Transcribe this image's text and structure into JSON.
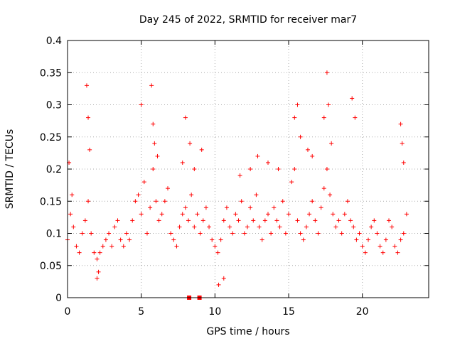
{
  "chart_data": {
    "type": "scatter",
    "title": "Day 245 of 2022, SRMTID for receiver mar7",
    "xlabel": "GPS time / hours",
    "ylabel": "SRMTID / TECUs",
    "xlim": [
      0,
      24.5
    ],
    "ylim": [
      0,
      0.4
    ],
    "x_ticks": [
      0,
      5,
      10,
      15,
      20
    ],
    "x_tick_labels": [
      "0",
      "5",
      "10",
      "15",
      "20"
    ],
    "y_ticks": [
      0,
      0.05,
      0.1,
      0.15,
      0.2,
      0.25,
      0.3,
      0.35,
      0.4
    ],
    "y_tick_labels": [
      "0",
      "0.05",
      "0.1",
      "0.15",
      "0.2",
      "0.25",
      "0.3",
      "0.35",
      "0.4"
    ],
    "grid": true,
    "marker": "+",
    "color": "#ff0000",
    "series": [
      {
        "name": "SRMTID",
        "x": [
          0.0,
          0.2,
          0.4,
          0.6,
          0.8,
          1.0,
          1.2,
          1.4,
          1.6,
          1.8,
          2.0,
          2.2,
          2.4,
          2.6,
          2.8,
          3.0,
          3.2,
          3.4,
          3.6,
          3.8,
          4.0,
          4.2,
          4.4,
          4.6,
          4.8,
          5.0,
          5.2,
          5.4,
          5.6,
          5.8,
          6.0,
          6.2,
          6.4,
          6.6,
          6.8,
          7.0,
          7.2,
          7.4,
          7.6,
          7.8,
          8.0,
          8.2,
          8.4,
          8.6,
          8.8,
          9.0,
          9.2,
          9.4,
          9.6,
          9.8,
          10.0,
          10.2,
          10.4,
          10.6,
          10.8,
          11.0,
          11.2,
          11.4,
          11.6,
          11.8,
          12.0,
          12.2,
          12.4,
          12.6,
          12.8,
          13.0,
          13.2,
          13.4,
          13.6,
          13.8,
          14.0,
          14.2,
          14.4,
          14.6,
          14.8,
          15.0,
          15.2,
          15.4,
          15.6,
          15.8,
          16.0,
          16.2,
          16.4,
          16.6,
          16.8,
          17.0,
          17.2,
          17.4,
          17.6,
          17.8,
          18.0,
          18.2,
          18.4,
          18.6,
          18.8,
          19.0,
          19.2,
          19.4,
          19.6,
          19.8,
          20.0,
          20.2,
          20.4,
          20.6,
          20.8,
          21.0,
          21.2,
          21.4,
          21.6,
          21.8,
          22.0,
          22.2,
          22.4,
          22.6,
          22.8,
          23.0,
          0.1,
          0.3,
          1.3,
          1.4,
          1.5,
          5.0,
          5.7,
          5.8,
          5.9,
          6.1,
          7.8,
          8.0,
          8.3,
          8.6,
          9.1,
          11.7,
          12.4,
          12.9,
          13.6,
          14.3,
          15.4,
          15.6,
          15.8,
          16.3,
          16.6,
          17.4,
          17.6,
          17.7,
          17.9,
          19.3,
          19.5,
          22.6,
          22.7,
          22.8,
          8.25,
          8.95,
          10.25,
          10.6,
          2.0,
          2.1
        ],
        "y": [
          0.09,
          0.13,
          0.11,
          0.08,
          0.07,
          0.1,
          0.12,
          0.15,
          0.1,
          0.07,
          0.06,
          0.07,
          0.08,
          0.09,
          0.1,
          0.08,
          0.11,
          0.12,
          0.09,
          0.08,
          0.1,
          0.09,
          0.12,
          0.15,
          0.16,
          0.13,
          0.18,
          0.1,
          0.14,
          0.2,
          0.15,
          0.12,
          0.13,
          0.15,
          0.17,
          0.1,
          0.09,
          0.08,
          0.11,
          0.13,
          0.14,
          0.12,
          0.16,
          0.11,
          0.13,
          0.1,
          0.12,
          0.14,
          0.11,
          0.09,
          0.08,
          0.07,
          0.09,
          0.12,
          0.14,
          0.11,
          0.1,
          0.13,
          0.12,
          0.15,
          0.1,
          0.11,
          0.14,
          0.12,
          0.16,
          0.11,
          0.09,
          0.12,
          0.13,
          0.1,
          0.14,
          0.12,
          0.11,
          0.15,
          0.1,
          0.13,
          0.18,
          0.2,
          0.12,
          0.1,
          0.09,
          0.11,
          0.13,
          0.15,
          0.12,
          0.1,
          0.14,
          0.17,
          0.2,
          0.16,
          0.13,
          0.11,
          0.12,
          0.1,
          0.13,
          0.15,
          0.12,
          0.11,
          0.09,
          0.1,
          0.08,
          0.07,
          0.09,
          0.11,
          0.12,
          0.1,
          0.08,
          0.07,
          0.09,
          0.12,
          0.11,
          0.08,
          0.07,
          0.09,
          0.1,
          0.13,
          0.21,
          0.16,
          0.33,
          0.28,
          0.23,
          0.3,
          0.33,
          0.27,
          0.24,
          0.22,
          0.21,
          0.28,
          0.24,
          0.2,
          0.23,
          0.19,
          0.2,
          0.22,
          0.21,
          0.2,
          0.28,
          0.3,
          0.25,
          0.23,
          0.22,
          0.28,
          0.35,
          0.3,
          0.24,
          0.31,
          0.28,
          0.27,
          0.24,
          0.21,
          0.0,
          0.0,
          0.02,
          0.03,
          0.03,
          0.04
        ]
      }
    ],
    "highlighted_points": [
      {
        "x": 8.25,
        "y": 0.0
      },
      {
        "x": 8.95,
        "y": 0.0
      }
    ]
  }
}
